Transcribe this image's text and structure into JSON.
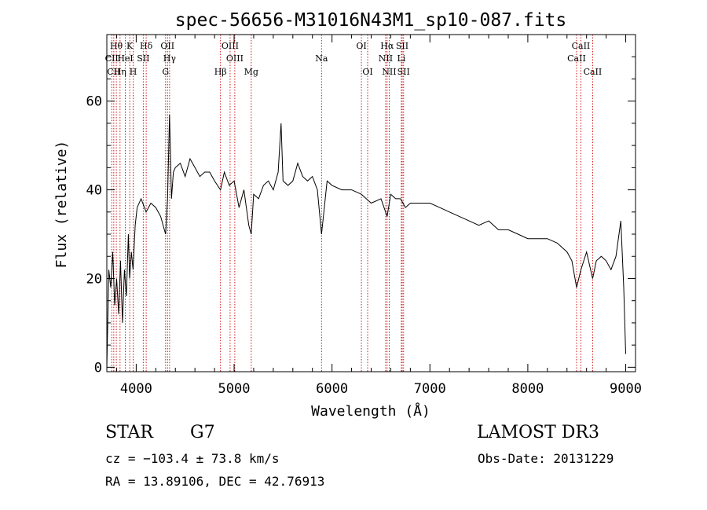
{
  "chart_data": {
    "type": "line",
    "title": "spec-56656-M31016N43M1_sp10-087.fits",
    "xlabel": "Wavelength (Å)",
    "ylabel": "Flux (relative)",
    "xlim": [
      3700,
      9100
    ],
    "ylim": [
      -1,
      75
    ],
    "xticks": [
      4000,
      5000,
      6000,
      7000,
      8000,
      9000
    ],
    "yticks": [
      0,
      20,
      40,
      60
    ],
    "series": [
      {
        "name": "flux",
        "x": [
          3700,
          3720,
          3740,
          3760,
          3780,
          3800,
          3820,
          3840,
          3860,
          3880,
          3900,
          3920,
          3933,
          3950,
          3968,
          3990,
          4010,
          4050,
          4101,
          4150,
          4200,
          4250,
          4300,
          4320,
          4340,
          4360,
          4380,
          4400,
          4450,
          4500,
          4550,
          4600,
          4650,
          4700,
          4750,
          4800,
          4861,
          4900,
          4950,
          5000,
          5050,
          5100,
          5150,
          5175,
          5200,
          5250,
          5300,
          5350,
          5400,
          5450,
          5480,
          5500,
          5550,
          5600,
          5650,
          5700,
          5750,
          5800,
          5850,
          5893,
          5950,
          6000,
          6100,
          6200,
          6300,
          6400,
          6500,
          6563,
          6600,
          6650,
          6700,
          6750,
          6800,
          6900,
          7000,
          7100,
          7200,
          7300,
          7400,
          7500,
          7600,
          7700,
          7800,
          7900,
          8000,
          8100,
          8200,
          8300,
          8400,
          8450,
          8498,
          8542,
          8600,
          8662,
          8700,
          8750,
          8800,
          8850,
          8900,
          8950,
          8980,
          9000
        ],
        "y": [
          0,
          22,
          18,
          26,
          14,
          20,
          12,
          24,
          10,
          22,
          16,
          30,
          20,
          26,
          22,
          32,
          36,
          38,
          35,
          37,
          36,
          34,
          30,
          38,
          57,
          38,
          44,
          45,
          46,
          43,
          47,
          45,
          43,
          44,
          44,
          42,
          40,
          44,
          41,
          42,
          36,
          40,
          32,
          30,
          39,
          38,
          41,
          42,
          40,
          44,
          55,
          42,
          41,
          42,
          46,
          43,
          42,
          43,
          40,
          30,
          42,
          41,
          40,
          40,
          39,
          37,
          38,
          34,
          39,
          38,
          38,
          36,
          37,
          37,
          37,
          36,
          35,
          34,
          33,
          32,
          33,
          31,
          31,
          30,
          29,
          29,
          29,
          28,
          26,
          24,
          18,
          22,
          26,
          20,
          24,
          25,
          24,
          22,
          25,
          33,
          18,
          3
        ]
      }
    ],
    "lines": [
      {
        "x": 3750,
        "label": "CII",
        "row": 1
      },
      {
        "x": 3771,
        "label": "CII",
        "row": 2
      },
      {
        "x": 3797,
        "label": "Hθ",
        "row": 0
      },
      {
        "x": 3835,
        "label": "Hη",
        "row": 2
      },
      {
        "x": 3889,
        "label": "HeI",
        "row": 1
      },
      {
        "x": 3934,
        "label": "K",
        "row": 0
      },
      {
        "x": 3969,
        "label": "H",
        "row": 2
      },
      {
        "x": 4072,
        "label": "SII",
        "row": 1
      },
      {
        "x": 4102,
        "label": "Hδ",
        "row": 0
      },
      {
        "x": 4300,
        "label": "G",
        "row": 2
      },
      {
        "x": 4320,
        "label": "OII",
        "row": 0
      },
      {
        "x": 4341,
        "label": "Hγ",
        "row": 1
      },
      {
        "x": 4861,
        "label": "Hβ",
        "row": 2
      },
      {
        "x": 4959,
        "label": "OIII",
        "row": 0
      },
      {
        "x": 5007,
        "label": "OIII",
        "row": 1
      },
      {
        "x": 5175,
        "label": "Mg",
        "row": 2
      },
      {
        "x": 5893,
        "label": "Na",
        "row": 1
      },
      {
        "x": 6300,
        "label": "OI",
        "row": 0
      },
      {
        "x": 6364,
        "label": "OI",
        "row": 2
      },
      {
        "x": 6548,
        "label": "NII",
        "row": 1
      },
      {
        "x": 6563,
        "label": "Hα",
        "row": 0
      },
      {
        "x": 6584,
        "label": "NII",
        "row": 2
      },
      {
        "x": 6708,
        "label": "Li",
        "row": 1
      },
      {
        "x": 6717,
        "label": "SII",
        "row": 0
      },
      {
        "x": 6731,
        "label": "SII",
        "row": 2
      },
      {
        "x": 8498,
        "label": "CaII",
        "row": 1
      },
      {
        "x": 8542,
        "label": "CaII",
        "row": 0
      },
      {
        "x": 8662,
        "label": "CaII",
        "row": 2
      }
    ]
  },
  "info": {
    "object_class": "STAR",
    "subclass": "G7",
    "survey": "LAMOST DR3",
    "redshift": "cz = −103.4 ± 73.8 km/s",
    "obs_date": "Obs-Date: 20131229",
    "coordinates": "RA =  13.89106, DEC =  42.76913"
  },
  "colors": {
    "line_marker": "#cc0000",
    "spectrum": "#000000"
  }
}
